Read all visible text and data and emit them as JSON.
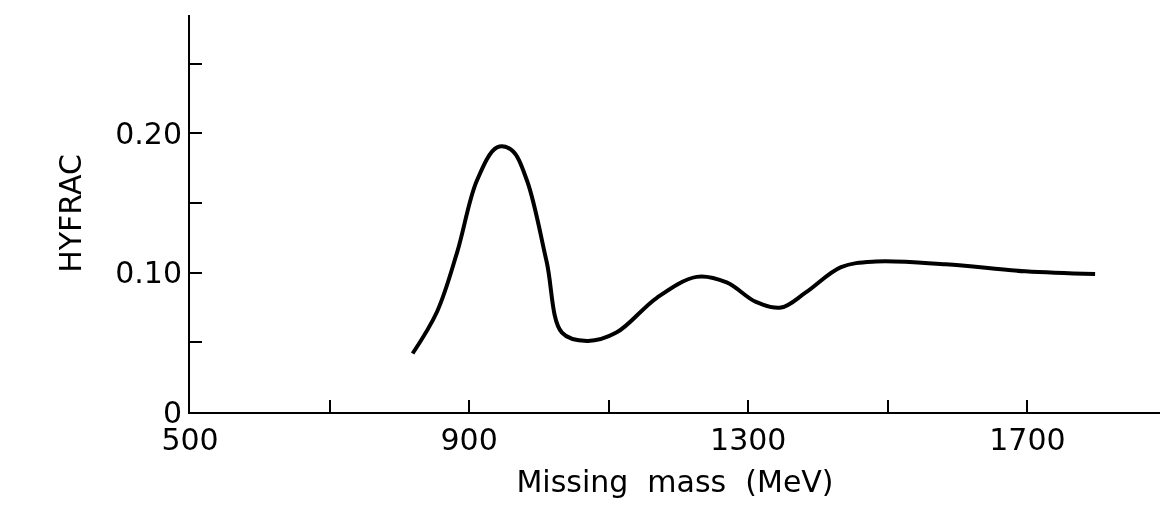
{
  "chart_data": {
    "type": "line",
    "xlabel": "Missing  mass  (MeV)",
    "ylabel": "HYFRAC",
    "x": [
      819,
      854,
      883,
      911,
      940,
      961,
      983,
      1011,
      1033,
      1069,
      1111,
      1169,
      1226,
      1269,
      1311,
      1347,
      1383,
      1433,
      1483,
      1583,
      1697,
      1797
    ],
    "series": [
      {
        "color": "#000000",
        "values": [
          0.042,
          0.072,
          0.115,
          0.166,
          0.19,
          0.188,
          0.166,
          0.108,
          0.057,
          0.051,
          0.057,
          0.082,
          0.097,
          0.093,
          0.079,
          0.075,
          0.086,
          0.104,
          0.108,
          0.106,
          0.101,
          0.099
        ]
      }
    ],
    "xlim": [
      500,
      1890
    ],
    "xticks": [
      500,
      {
        "value": 700,
        "label": null
      },
      900,
      {
        "value": 1100,
        "label": null
      },
      1300,
      {
        "value": 1500,
        "label": null
      },
      1700
    ],
    "ylim": [
      0,
      0.285
    ],
    "yticks": [
      0,
      {
        "value": 0.05,
        "label": null
      },
      {
        "value": 0.1,
        "label": "0.10"
      },
      {
        "value": 0.15,
        "label": null
      },
      {
        "value": 0.2,
        "label": "0.20"
      },
      {
        "value": 0.25,
        "label": null
      }
    ],
    "marker": "none",
    "line_style": "solid"
  }
}
